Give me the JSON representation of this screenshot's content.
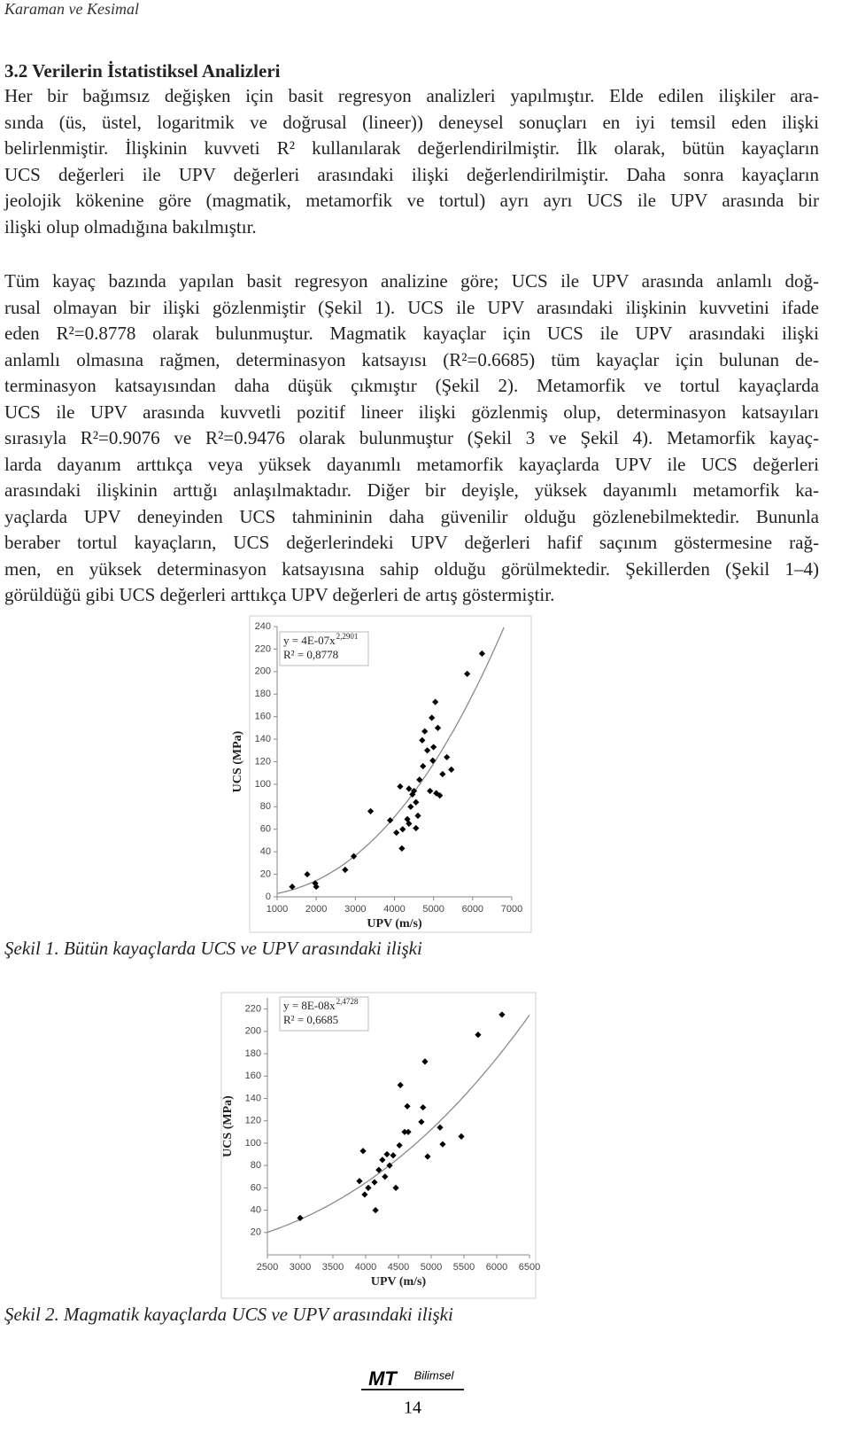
{
  "header": {
    "running_title": "Karaman ve Kesimal"
  },
  "section": {
    "title": "3.2 Verilerin İstatistiksel Analizleri",
    "paragraphs": [
      [
        "Her bir bağımsız değişken için basit regresyon analizleri yapılmıştır. Elde edilen ilişkiler ara-",
        "sında (üs, üstel, logaritmik ve doğrusal (lineer)) deneysel sonuçları en iyi temsil eden ilişki",
        "belirlenmiştir. İlişkinin kuvveti R² kullanılarak değerlendirilmiştir. İlk olarak, bütün kayaçların",
        "UCS değerleri ile UPV değerleri arasındaki ilişki değerlendirilmiştir. Daha sonra kayaçların",
        "jeolojik kökenine göre (magmatik, metamorfik ve tortul) ayrı ayrı UCS ile UPV arasında bir",
        "ilişki olup olmadığına bakılmıştır."
      ],
      [
        "Tüm kayaç bazında yapılan basit regresyon analizine göre; UCS ile UPV arasında anlamlı doğ-",
        "rusal olmayan bir ilişki gözlenmiştir (Şekil 1). UCS ile UPV arasındaki ilişkinin kuvvetini ifade",
        "eden R²=0.8778 olarak bulunmuştur. Magmatik kayaçlar için UCS ile UPV arasındaki ilişki",
        "anlamlı olmasına rağmen, determinasyon katsayısı (R²=0.6685) tüm kayaçlar için bulunan de-",
        "terminasyon katsayısından daha düşük çıkmıştır (Şekil 2). Metamorfik ve tortul kayaçlarda",
        "UCS ile UPV arasında kuvvetli pozitif lineer ilişki gözlenmiş olup, determinasyon katsayıları",
        "sırasıyla R²=0.9076 ve R²=0.9476 olarak bulunmuştur (Şekil 3 ve Şekil 4). Metamorfik kayaç-",
        "larda dayanım arttıkça veya yüksek dayanımlı metamorfik kayaçlarda UPV ile UCS değerleri",
        "arasındaki ilişkinin arttığı anlaşılmaktadır. Diğer bir deyişle, yüksek dayanımlı metamorfik ka-",
        "yaçlarda UPV deneyinden UCS tahmininin daha güvenilir olduğu gözlenebilmektedir. Bununla",
        "beraber tortul kayaçların, UCS değerlerindeki UPV değerleri hafif saçınım göstermesine rağ-",
        "men, en yüksek determinasyon katsayısına sahip olduğu görülmektedir. Şekillerden (Şekil 1–4)",
        "görüldüğü gibi UCS değerleri arttıkça UPV değerleri de artış göstermiştir."
      ]
    ]
  },
  "chart_data": [
    {
      "type": "scatter",
      "caption": "Şekil 1. Bütün kayaçlarda UCS ve UPV arasındaki ilişki",
      "x_label": "UPV (m/s)",
      "y_label": "UCS (MPa)",
      "equation": "y = 4E-07x",
      "equation_exponent": "2,2901",
      "r_squared_label": "R² = 0,8778",
      "trendline": {
        "coefficient": 4e-07,
        "exponent": 2.2901
      },
      "color": "#000000",
      "x": [
        1385,
        1770,
        1975,
        2000,
        2740,
        2960,
        3390,
        3890,
        4145,
        4210,
        4050,
        4190,
        4330,
        4370,
        4415,
        4460,
        4500,
        4550,
        4600,
        4640,
        4370,
        4550,
        4710,
        4730,
        4775,
        4910,
        4980,
        5000,
        4955,
        5045,
        5070,
        5160,
        5230,
        5340,
        5455,
        5860,
        6240,
        4840,
        5110
      ],
      "values": [
        9,
        20,
        12,
        9,
        24,
        36,
        76,
        68,
        98,
        60,
        57,
        43,
        69,
        96,
        80,
        91,
        94,
        84,
        72,
        104,
        65,
        61,
        139,
        116,
        147,
        94,
        121,
        133,
        159,
        173,
        92,
        90,
        109,
        124,
        113,
        198,
        216,
        130,
        150
      ],
      "xlim": [
        1000,
        7000
      ],
      "ylim": [
        0,
        240
      ],
      "xticks": [
        1000,
        2000,
        3000,
        4000,
        5000,
        6000,
        7000
      ],
      "yticks": [
        0,
        20,
        40,
        60,
        80,
        100,
        120,
        140,
        160,
        180,
        200,
        220,
        240
      ]
    },
    {
      "type": "scatter",
      "caption": "Şekil 2. Magmatik kayaçlarda UCS ve UPV arasındaki ilişki",
      "x_label": "UPV (m/s)",
      "y_label": "UCS (MPa)",
      "equation": "y = 8E-08x",
      "equation_exponent": "2,4728",
      "r_squared_label": "R² = 0,6685",
      "trendline": {
        "coefficient": 8e-08,
        "exponent": 2.4728
      },
      "color": "#000000",
      "x": [
        3000,
        3905,
        3960,
        3985,
        4040,
        4135,
        4150,
        4200,
        4255,
        4295,
        4325,
        4365,
        4420,
        4460,
        4515,
        4530,
        4595,
        4650,
        4635,
        4850,
        4875,
        4905,
        4945,
        5135,
        5175,
        5460,
        5715,
        6080
      ],
      "values": [
        33,
        66,
        93,
        54,
        60,
        65,
        40,
        76,
        85,
        70,
        90,
        80,
        89,
        60,
        98,
        152,
        110,
        110,
        133,
        119,
        132,
        173,
        88,
        114,
        99,
        106,
        197,
        215
      ],
      "xlim": [
        2500,
        6500
      ],
      "ylim": [
        0,
        230
      ],
      "xticks": [
        2500,
        3000,
        3500,
        4000,
        4500,
        5000,
        5500,
        6000,
        6500
      ],
      "yticks": [
        20,
        40,
        60,
        80,
        100,
        120,
        140,
        160,
        180,
        200,
        220
      ]
    }
  ],
  "footer": {
    "logo": "MT",
    "logo_sub": "Bilimsel",
    "page": "14"
  }
}
